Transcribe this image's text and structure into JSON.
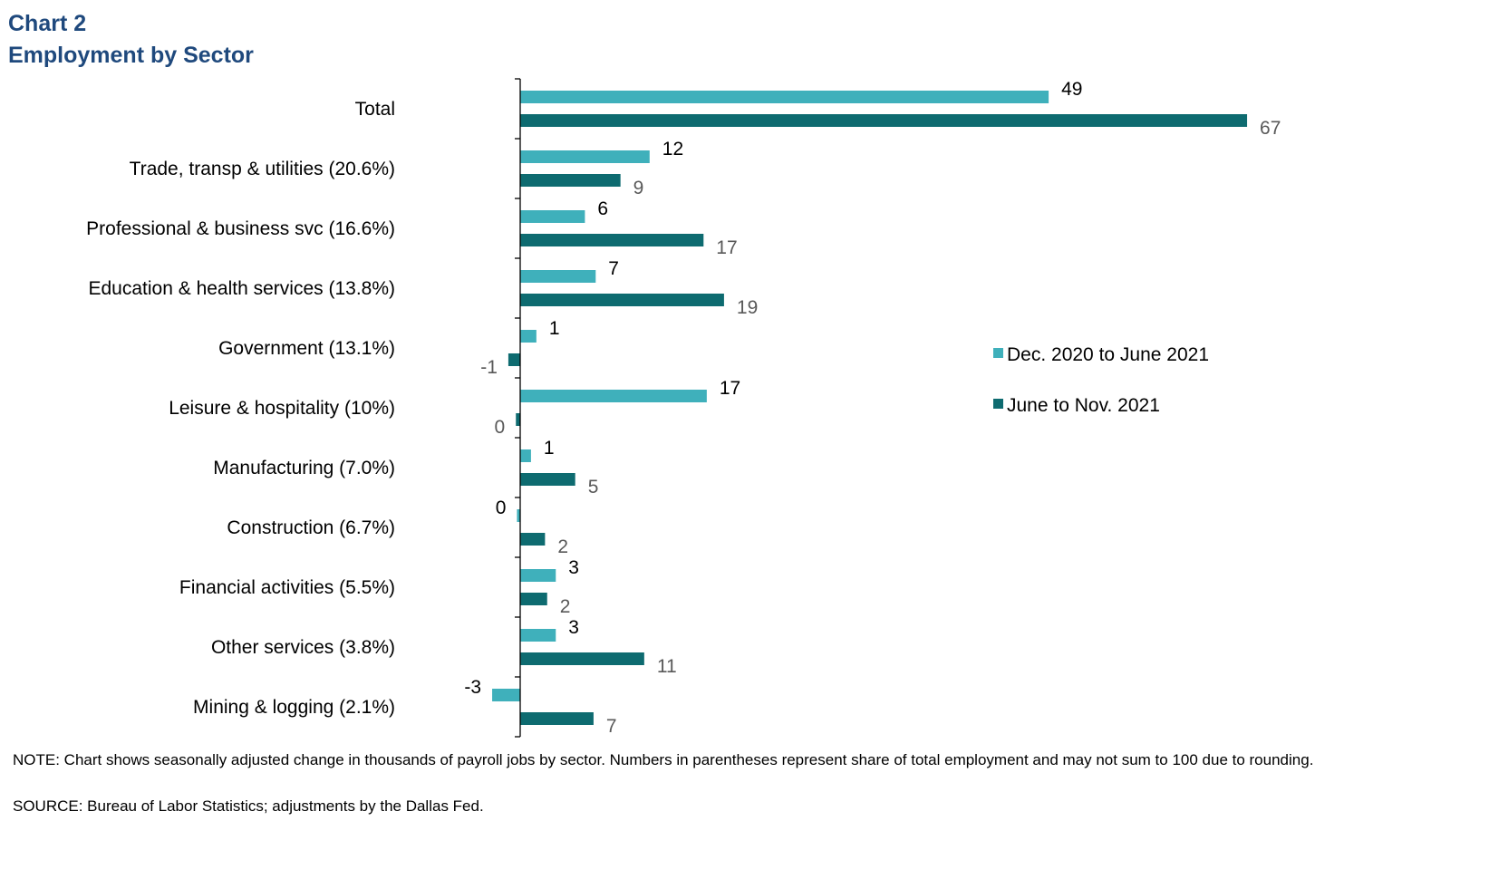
{
  "header": {
    "chart_label": "Chart 2",
    "title": "Employment by Sector"
  },
  "chart_data": {
    "type": "bar",
    "orientation": "horizontal",
    "categories": [
      "Total",
      "Trade, transp & utilities (20.6%)",
      "Professional & business svc (16.6%)",
      "Education & health services (13.8%)",
      "Government (13.1%)",
      "Leisure & hospitality (10%)",
      "Manufacturing (7.0%)",
      "Construction (6.7%)",
      "Financial activities (5.5%)",
      "Other services (3.8%)",
      "Mining & logging (2.1%)"
    ],
    "series": [
      {
        "name": "Dec. 2020 to June 2021",
        "color": "#3fb0bb",
        "label_color": "#000000",
        "values": [
          49,
          12,
          6,
          7,
          1.5,
          17.3,
          1,
          -0.3,
          3.3,
          3.3,
          -2.6
        ],
        "labels": [
          "49",
          "12",
          "6",
          "7",
          "1",
          "17",
          "1",
          "0",
          "3",
          "3",
          "-3"
        ]
      },
      {
        "name": "June to Nov. 2021",
        "color": "#0e6b70",
        "label_color": "#595959",
        "values": [
          67.4,
          9.3,
          17,
          18.9,
          -1.1,
          -0.4,
          5.1,
          2.3,
          2.5,
          11.5,
          6.8
        ],
        "labels": [
          "67",
          "9",
          "17",
          "19",
          "-1",
          "0",
          "5",
          "2",
          "2",
          "11",
          "7"
        ]
      }
    ],
    "xlim": [
      -4,
      68
    ],
    "legend_position": "right",
    "title": "Employment by Sector"
  },
  "footer": {
    "note": "NOTE: Chart shows seasonally adjusted change in thousands of payroll jobs by sector. Numbers in parentheses represent share of total employment and may not sum to 100 due to rounding.",
    "source": "SOURCE: Bureau of Labor Statistics; adjustments by the Dallas Fed."
  }
}
